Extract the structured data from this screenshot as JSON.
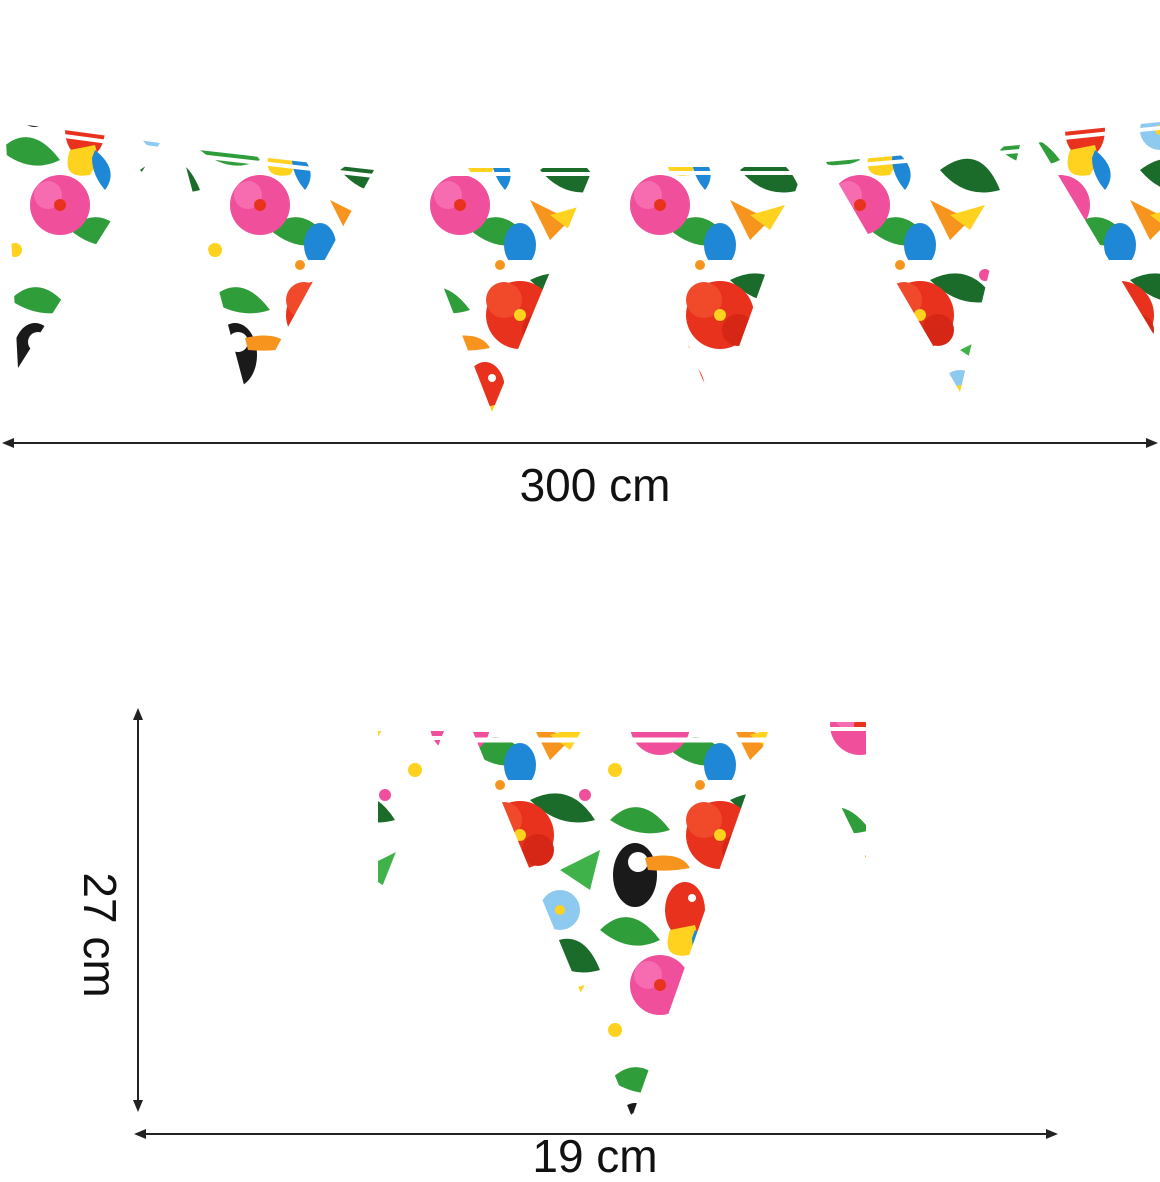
{
  "dimensions": {
    "total_length": "300 cm",
    "flag_height": "27 cm",
    "flag_width": "19 cm"
  },
  "pattern": {
    "motif": "tropical flowers and birds",
    "colors": {
      "red": "#e8321e",
      "orange": "#f7941d",
      "yellow": "#ffd21f",
      "pink": "#f0509b",
      "green": "#2e9d3a",
      "dark_green": "#1b6b2a",
      "blue": "#1e88d6",
      "light_blue": "#8ec9f0",
      "black": "#1a1a1a",
      "white": "#ffffff"
    }
  },
  "dimension_line_color": "#222222"
}
